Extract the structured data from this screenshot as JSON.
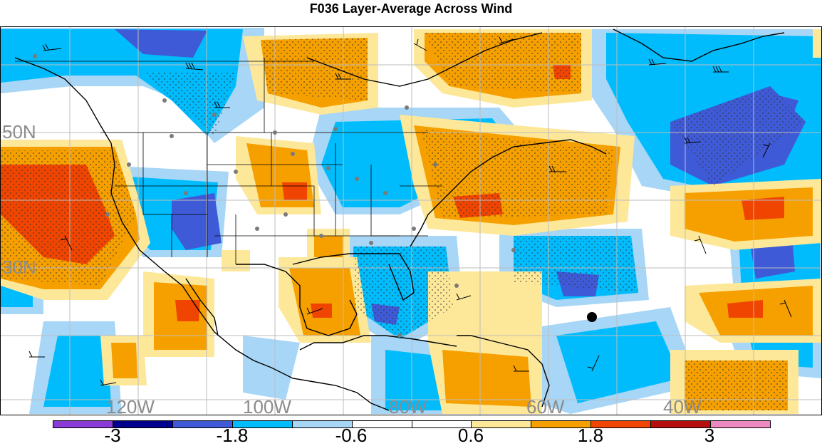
{
  "title": "F036 Layer-Average Across Wind",
  "map": {
    "lon_labels": [
      "120W",
      "100W",
      "80W",
      "60W",
      "40W"
    ],
    "lat_labels": [
      "50N",
      "30N"
    ],
    "marker": "black-dot"
  },
  "colorbar": {
    "colors": [
      "#8a3ad6",
      "#00008c",
      "#3e5ad6",
      "#00bcfc",
      "#a7d6f6",
      "#ffffff",
      "#ffffff",
      "#fde89a",
      "#f6a000",
      "#f04500",
      "#b40f0f",
      "#ec89c0"
    ],
    "tick_labels": [
      "-3",
      "-1.8",
      "-0.6",
      "0.6",
      "1.8",
      "3"
    ]
  }
}
